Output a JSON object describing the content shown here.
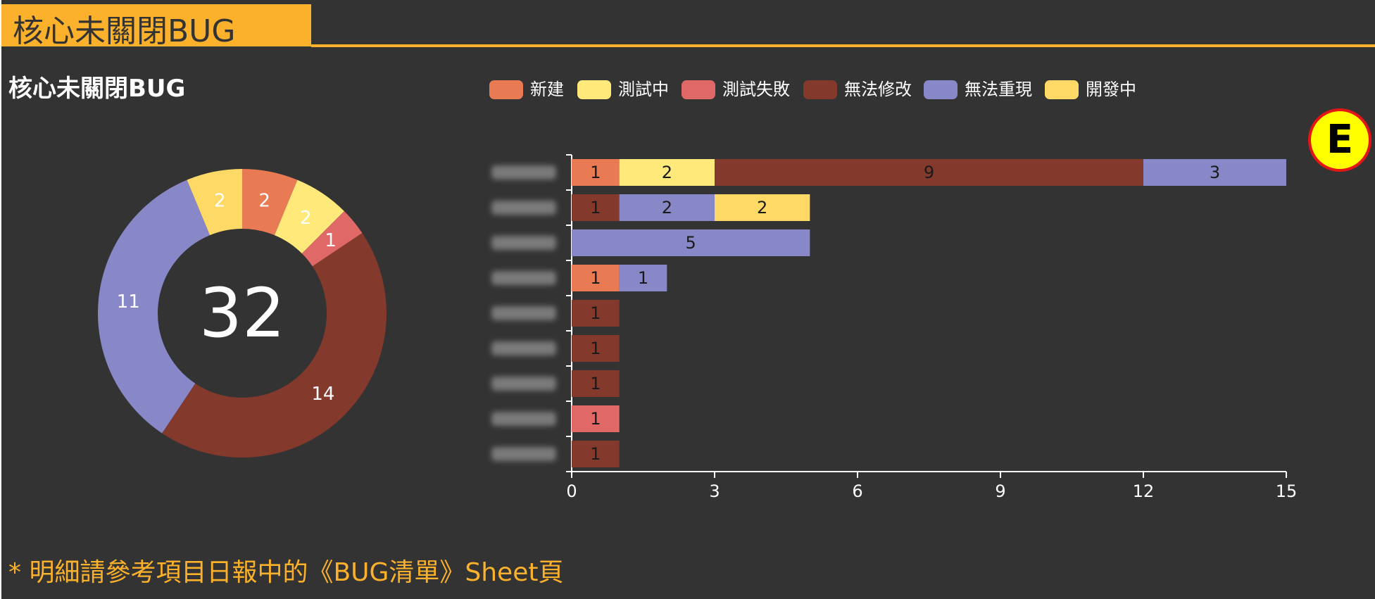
{
  "header": {
    "title": "核心未關閉BUG"
  },
  "footnote": "* 明細請參考項目日報中的《BUG清單》Sheet頁",
  "badge": {
    "letter": "E",
    "fill": "#ffff00",
    "border": "#e31515"
  },
  "chart_data": [
    {
      "type": "pie",
      "variant": "donut",
      "center_label": "32",
      "slices": [
        {
          "status": "新建",
          "value": 2
        },
        {
          "status": "測試中",
          "value": 2
        },
        {
          "status": "測試失敗",
          "value": 1
        },
        {
          "status": "無法修改",
          "value": 14
        },
        {
          "status": "無法重現",
          "value": 11
        },
        {
          "status": "開發中",
          "value": 2
        }
      ]
    },
    {
      "type": "bar",
      "orientation": "horizontal",
      "stacked": true,
      "title": "核心未關閉BUG",
      "xlim": [
        0,
        15
      ],
      "xticks": [
        0,
        3,
        6,
        9,
        12,
        15
      ],
      "category_count": 9,
      "categories_obscured": true,
      "legend_position": "top",
      "series": [
        {
          "name": "新建",
          "color": "#e87b53",
          "values": [
            1,
            0,
            0,
            1,
            0,
            0,
            0,
            0,
            0
          ]
        },
        {
          "name": "測試中",
          "color": "#ffe97a",
          "values": [
            2,
            0,
            0,
            0,
            0,
            0,
            0,
            0,
            0
          ]
        },
        {
          "name": "測試失敗",
          "color": "#e06866",
          "values": [
            0,
            0,
            0,
            0,
            0,
            0,
            0,
            1,
            0
          ]
        },
        {
          "name": "無法修改",
          "color": "#83392c",
          "values": [
            9,
            1,
            0,
            0,
            1,
            1,
            1,
            0,
            1
          ]
        },
        {
          "name": "無法重現",
          "color": "#8887c8",
          "values": [
            3,
            2,
            5,
            1,
            0,
            0,
            0,
            0,
            0
          ]
        },
        {
          "name": "開發中",
          "color": "#ffd966",
          "values": [
            0,
            2,
            0,
            0,
            0,
            0,
            0,
            0,
            0
          ]
        }
      ]
    }
  ]
}
